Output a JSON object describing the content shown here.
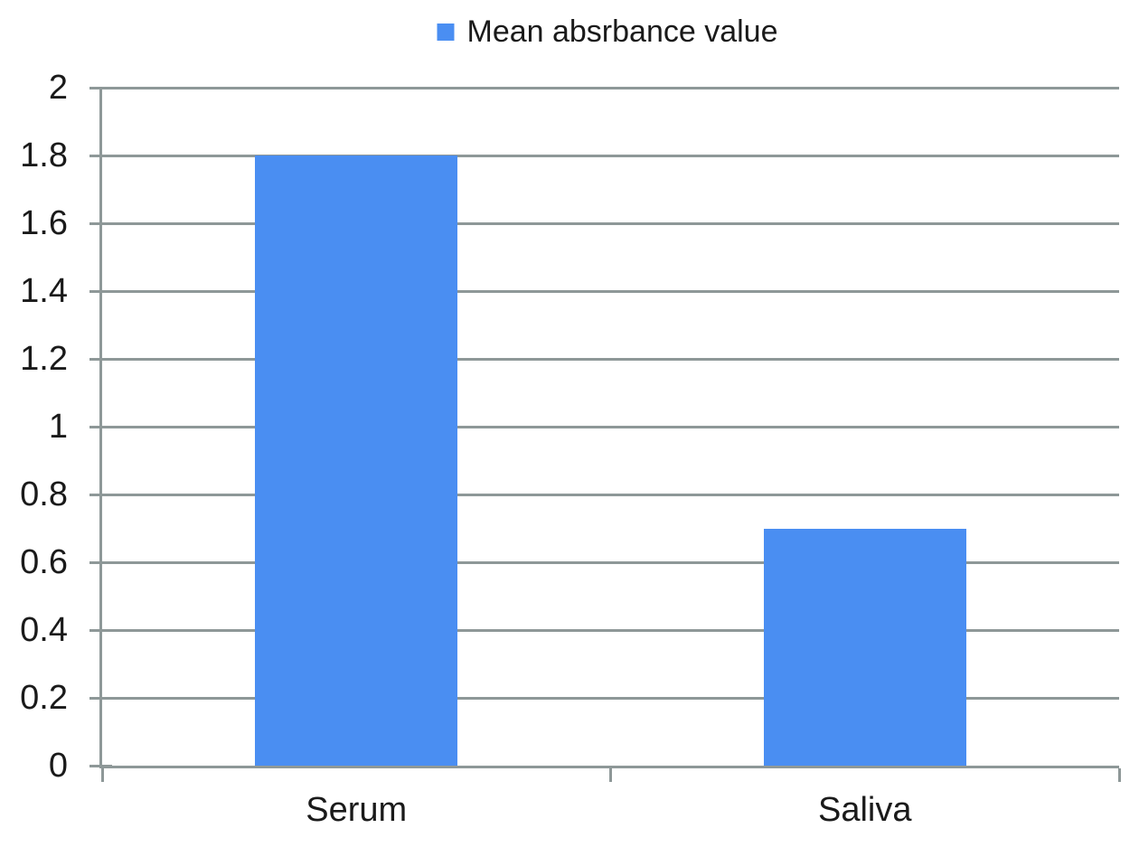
{
  "chart_data": {
    "type": "bar",
    "title": "",
    "xlabel": "",
    "ylabel": "",
    "legend": "Mean absrbance value",
    "legend_position": "top-center",
    "categories": [
      "Serum",
      "Saliva"
    ],
    "series": [
      {
        "name": "Mean absrbance value",
        "values": [
          1.8,
          0.7
        ]
      }
    ],
    "ylim": [
      0,
      2
    ],
    "ytick_interval": 0.2,
    "yticks": [
      0,
      0.2,
      0.4,
      0.6,
      0.8,
      1,
      1.2,
      1.4,
      1.6,
      1.8,
      2
    ],
    "ytick_labels": [
      "0",
      "0.2",
      "0.4",
      "0.6",
      "0.8",
      "1",
      "1.2",
      "1.4",
      "1.6",
      "1.8",
      "2"
    ],
    "grid": true,
    "bar_width_fraction": 0.398,
    "colors": {
      "bar": "#4a8ef2",
      "grid": "#8e9898",
      "axis": "#8e9898",
      "text": "#1a1a1a",
      "background": "#ffffff"
    }
  }
}
